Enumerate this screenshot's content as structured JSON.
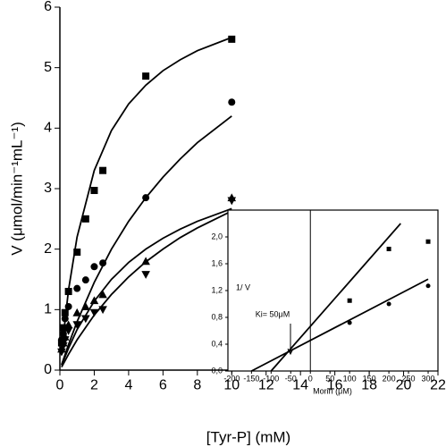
{
  "chart_data": [
    {
      "type": "scatter",
      "xlabel": "[Tyr-P] (mM)",
      "ylabel": "V (μmol/min⁻¹mL⁻¹)",
      "xlim": [
        0,
        22
      ],
      "xticks": [
        0,
        2,
        4,
        6,
        8,
        10,
        12,
        14,
        16,
        18,
        20,
        22
      ],
      "ylim": [
        0,
        6
      ],
      "yticks": [
        0,
        1,
        2,
        3,
        4,
        5,
        6
      ],
      "series": [
        {
          "marker": "square",
          "color": "#000000",
          "x": [
            0.1,
            0.2,
            0.3,
            0.5,
            1,
            1.5,
            2,
            2.5,
            5,
            10
          ],
          "values": [
            0.45,
            0.7,
            0.95,
            1.3,
            1.95,
            2.5,
            2.97,
            3.3,
            4.86,
            5.47
          ]
        },
        {
          "marker": "circle",
          "color": "#000000",
          "x": [
            0.1,
            0.2,
            0.3,
            0.5,
            1,
            1.5,
            2,
            2.5,
            5,
            10
          ],
          "values": [
            0.5,
            0.6,
            0.85,
            1.05,
            1.35,
            1.49,
            1.71,
            1.77,
            2.85,
            4.43
          ]
        },
        {
          "marker": "triangle-up",
          "color": "#000000",
          "x": [
            0.1,
            0.2,
            0.3,
            0.5,
            1,
            1.5,
            2,
            2.5,
            5,
            10
          ],
          "values": [
            0.35,
            0.45,
            0.55,
            0.75,
            0.95,
            1.05,
            1.15,
            1.25,
            1.8,
            2.85
          ]
        },
        {
          "marker": "triangle-down",
          "color": "#000000",
          "x": [
            0.1,
            0.2,
            0.3,
            0.5,
            1,
            1.5,
            2,
            2.5,
            5,
            10
          ],
          "values": [
            0.3,
            0.4,
            0.5,
            0.65,
            0.75,
            0.85,
            0.95,
            1.0,
            1.58,
            2.8
          ]
        }
      ],
      "fits": [
        {
          "color": "#000000",
          "x": [
            0.1,
            0.5,
            1,
            2,
            3,
            4,
            5,
            6,
            7,
            8,
            10
          ],
          "values": [
            0.31,
            1.32,
            2.2,
            3.3,
            3.96,
            4.4,
            4.71,
            4.95,
            5.13,
            5.28,
            5.5
          ]
        },
        {
          "color": "#000000",
          "x": [
            0.1,
            0.5,
            1,
            2,
            3,
            4,
            5,
            6,
            7,
            8,
            10
          ],
          "values": [
            0.09,
            0.42,
            0.8,
            1.45,
            2.0,
            2.46,
            2.85,
            3.19,
            3.49,
            3.76,
            4.2
          ]
        },
        {
          "color": "#000000",
          "x": [
            0.1,
            0.5,
            1,
            2,
            3,
            4,
            5,
            6,
            7,
            8,
            10
          ],
          "values": [
            0.08,
            0.36,
            0.67,
            1.14,
            1.5,
            1.78,
            2.0,
            2.18,
            2.33,
            2.46,
            2.67
          ]
        },
        {
          "color": "#000000",
          "x": [
            0.1,
            0.5,
            1,
            2,
            3,
            4,
            5,
            6,
            7,
            8,
            10
          ],
          "values": [
            0.05,
            0.26,
            0.5,
            0.91,
            1.25,
            1.54,
            1.79,
            2.0,
            2.19,
            2.35,
            2.63
          ]
        }
      ]
    },
    {
      "type": "scatter",
      "xlabel": "Morin (μM)",
      "ylabel": "1/ V",
      "annotation": "Ki= 50μM",
      "xlim": [
        -210,
        325
      ],
      "xticks": [
        -200,
        -150,
        -100,
        -50,
        0,
        50,
        100,
        150,
        200,
        250,
        300
      ],
      "ylim": [
        0,
        2.4
      ],
      "yticks": [
        {
          "value": 0,
          "label": "0,0"
        },
        {
          "value": 0.4,
          "label": "0,4"
        },
        {
          "value": 0.8,
          "label": "0,8"
        },
        {
          "value": 1.2,
          "label": "1,2"
        },
        {
          "value": 1.6,
          "label": "1,6"
        },
        {
          "value": 2.0,
          "label": "2,0"
        }
      ],
      "series": [
        {
          "marker": "square",
          "color": "#000000",
          "x": [
            100,
            200,
            300
          ],
          "values": [
            1.05,
            1.82,
            1.93
          ]
        },
        {
          "marker": "circle",
          "color": "#000000",
          "x": [
            100,
            200,
            300
          ],
          "values": [
            0.72,
            1.0,
            1.27
          ]
        }
      ],
      "fits": [
        {
          "color": "#000000",
          "x": [
            -100,
            230
          ],
          "values": [
            0,
            2.2
          ]
        },
        {
          "color": "#000000",
          "x": [
            -150,
            300
          ],
          "values": [
            0,
            1.37
          ]
        }
      ]
    }
  ]
}
